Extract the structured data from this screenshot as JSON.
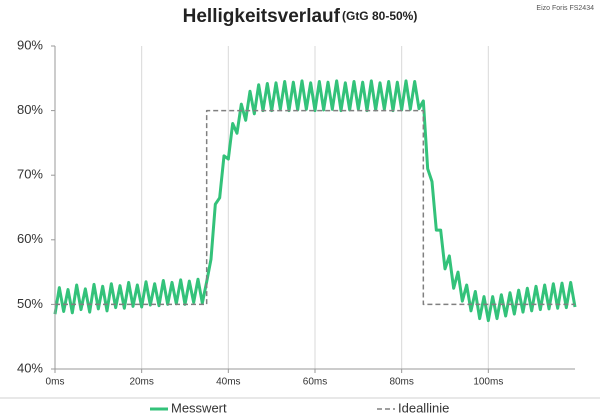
{
  "chart_data": {
    "type": "line",
    "title": "Helligkeitsverlauf",
    "subtitle": "(GtG 80-50%)",
    "note": "Eizo Foris FS2434",
    "xlim": [
      0,
      120
    ],
    "ylim": [
      40,
      90
    ],
    "xticks": [
      {
        "value": 0,
        "label": "0ms"
      },
      {
        "value": 20,
        "label": "20ms"
      },
      {
        "value": 40,
        "label": "40ms"
      },
      {
        "value": 60,
        "label": "60ms"
      },
      {
        "value": 80,
        "label": "80ms"
      },
      {
        "value": 100,
        "label": "100ms"
      }
    ],
    "yticks": [
      {
        "value": 40,
        "label": "40%"
      },
      {
        "value": 50,
        "label": "50%"
      },
      {
        "value": 60,
        "label": "60%"
      },
      {
        "value": 70,
        "label": "70%"
      },
      {
        "value": 80,
        "label": "80%"
      },
      {
        "value": 90,
        "label": "90%"
      }
    ],
    "xgrid": true,
    "series": [
      {
        "name": "Messwert",
        "color": "#33c27a",
        "dashed": false,
        "x": [
          0,
          1,
          2,
          3,
          4,
          5,
          6,
          7,
          8,
          9,
          10,
          11,
          12,
          13,
          14,
          15,
          16,
          17,
          18,
          19,
          20,
          21,
          22,
          23,
          24,
          25,
          26,
          27,
          28,
          29,
          30,
          31,
          32,
          33,
          34,
          35,
          36,
          37,
          38,
          39,
          40,
          41,
          42,
          43,
          44,
          45,
          46,
          47,
          48,
          49,
          50,
          51,
          52,
          53,
          54,
          55,
          56,
          57,
          58,
          59,
          60,
          61,
          62,
          63,
          64,
          65,
          66,
          67,
          68,
          69,
          70,
          71,
          72,
          73,
          74,
          75,
          76,
          77,
          78,
          79,
          80,
          81,
          82,
          83,
          84,
          85,
          86,
          87,
          88,
          89,
          90,
          91,
          92,
          93,
          94,
          95,
          96,
          97,
          98,
          99,
          100,
          101,
          102,
          103,
          104,
          105,
          106,
          107,
          108,
          109,
          110,
          111,
          112,
          113,
          114,
          115,
          116,
          117,
          118,
          119,
          120
        ],
        "values": [
          48.5,
          52.6,
          48.9,
          52.3,
          48.7,
          53.0,
          49.2,
          52.4,
          48.8,
          53.1,
          49.3,
          52.8,
          49.0,
          53.2,
          49.5,
          52.9,
          49.4,
          53.4,
          49.7,
          53.0,
          49.6,
          53.5,
          49.9,
          53.2,
          49.8,
          53.7,
          50.0,
          53.4,
          50.1,
          53.8,
          50.0,
          53.6,
          50.3,
          53.9,
          50.2,
          53.5,
          57.0,
          65.5,
          66.5,
          73.0,
          72.5,
          78.0,
          76.5,
          81.0,
          78.5,
          83.0,
          79.5,
          84.0,
          80.0,
          84.2,
          80.0,
          84.3,
          80.2,
          84.5,
          80.0,
          84.4,
          80.1,
          84.6,
          80.2,
          84.3,
          80.0,
          84.5,
          80.1,
          84.4,
          80.2,
          84.6,
          80.0,
          84.3,
          80.1,
          84.5,
          80.2,
          84.4,
          80.0,
          84.6,
          80.1,
          84.3,
          80.2,
          84.5,
          80.0,
          84.4,
          80.1,
          84.6,
          80.2,
          84.5,
          80.3,
          81.5,
          71.0,
          69.0,
          61.5,
          61.5,
          55.5,
          57.5,
          52.5,
          55.0,
          50.5,
          53.0,
          49.0,
          52.0,
          47.8,
          51.2,
          47.5,
          51.2,
          47.8,
          51.5,
          48.2,
          51.8,
          48.5,
          52.2,
          48.8,
          52.5,
          49.0,
          52.8,
          49.2,
          53.0,
          49.3,
          53.2,
          49.4,
          53.3,
          49.5,
          53.4,
          49.6
        ]
      },
      {
        "name": "Ideallinie",
        "color": "#808080",
        "dashed": true,
        "x": [
          0,
          35,
          35,
          85,
          85,
          120
        ],
        "values": [
          50,
          50,
          80,
          80,
          50,
          50
        ]
      }
    ]
  }
}
